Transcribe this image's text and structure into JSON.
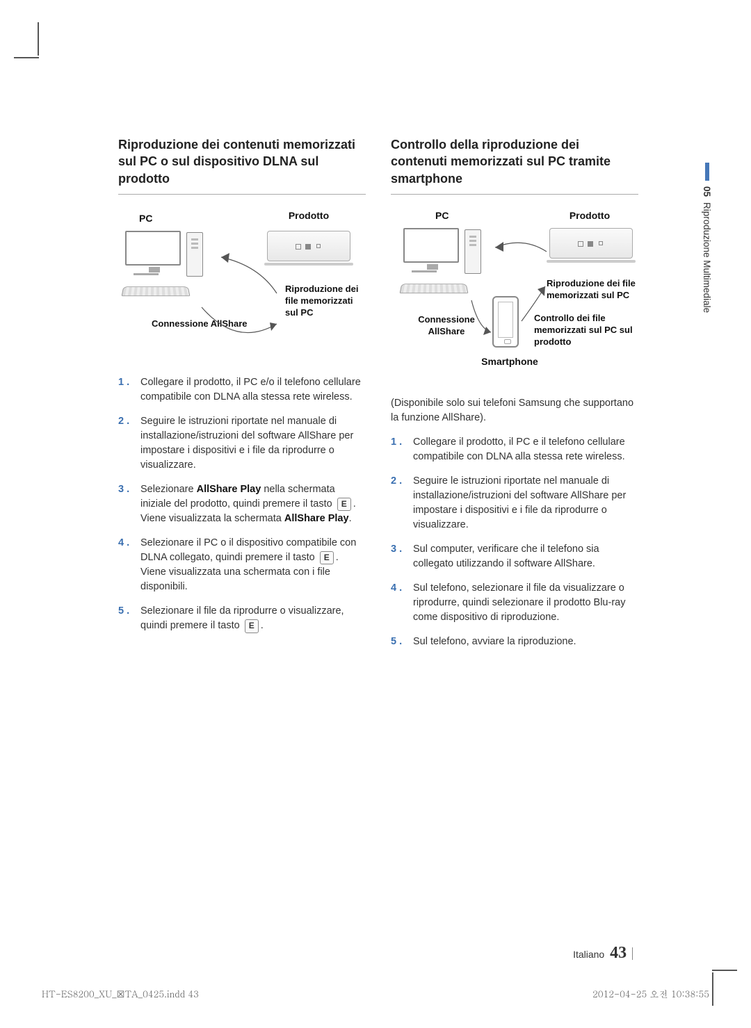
{
  "side_tab": {
    "num": "05",
    "label": "Riproduzione Multimediale"
  },
  "left": {
    "title": "Riproduzione dei contenuti memorizzati sul PC o sul dispositivo DLNA sul prodotto",
    "diagram": {
      "pc": "PC",
      "product": "Prodotto",
      "conn": "Connessione AllShare",
      "play": "Riproduzione dei file memorizzati sul PC"
    },
    "steps": [
      "Collegare il prodotto, il PC e/o il telefono cellulare compatibile con DLNA alla stessa rete wireless.",
      "Seguire le istruzioni riportate nel manuale di installazione/istruzioni del software AllShare per impostare i dispositivi e i file da riprodurre o visualizzare.",
      "Selezionare <b>AllShare Play</b> nella schermata iniziale del prodotto, quindi premere il tasto <k>E</k>. Viene visualizzata la schermata <b>AllShare Play</b>.",
      "Selezionare il PC o il dispositivo compatibile con DLNA collegato, quindi premere il tasto <k>E</k>. Viene visualizzata una schermata con i file disponibili.",
      "Selezionare il file da riprodurre o visualizzare, quindi premere il tasto <k>E</k>."
    ]
  },
  "right": {
    "title": "Controllo della riproduzione dei contenuti memorizzati sul PC tramite smartphone",
    "diagram": {
      "pc": "PC",
      "product": "Prodotto",
      "conn": "Connessione AllShare",
      "phone": "Smartphone",
      "play1": "Riproduzione dei file memorizzati sul PC",
      "play2": "Controllo dei file memorizzati sul PC sul prodotto"
    },
    "note": "(Disponibile solo sui telefoni Samsung che supportano la funzione AllShare).",
    "steps": [
      "Collegare il prodotto, il PC e il telefono cellulare compatibile con DLNA alla stessa rete wireless.",
      "Seguire le istruzioni riportate nel manuale di installazione/istruzioni del software AllShare per impostare i dispositivi e i file da riprodurre o visualizzare.",
      "Sul computer, verificare che il telefono sia collegato utilizzando il software AllShare.",
      "Sul telefono, selezionare il file da visualizzare o riprodurre, quindi selezionare il prodotto Blu-ray come dispositivo di riproduzione.",
      "Sul telefono, avviare la riproduzione."
    ]
  },
  "footer": {
    "lang": "Italiano",
    "page": "43"
  },
  "indd": {
    "left": "HT-ES8200_XU_☒TA_0425.indd   43",
    "right": "2012-04-25   오전 10:38:55"
  }
}
